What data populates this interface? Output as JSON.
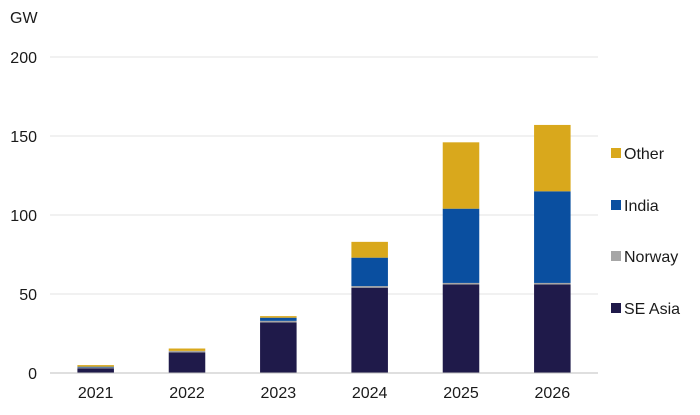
{
  "chart_data": {
    "type": "bar",
    "stacked": true,
    "unit_label": "GW",
    "categories": [
      "2021",
      "2022",
      "2023",
      "2024",
      "2025",
      "2026"
    ],
    "series": [
      {
        "name": "SE Asia",
        "color": "#1f1a4a",
        "values": [
          3,
          13,
          32,
          54,
          56,
          56
        ]
      },
      {
        "name": "Norway",
        "color": "#a6a6a6",
        "values": [
          0.5,
          1,
          1,
          1,
          1,
          1
        ]
      },
      {
        "name": "India",
        "color": "#0a4fa0",
        "values": [
          0.5,
          0,
          2,
          18,
          47,
          58
        ]
      },
      {
        "name": "Other",
        "color": "#d9a81c",
        "values": [
          1,
          1.5,
          1,
          10,
          42,
          42
        ]
      }
    ],
    "ylim": [
      0,
      200
    ],
    "yticks": [
      0,
      50,
      100,
      150,
      200
    ],
    "grid": true,
    "legend_position": "right",
    "legend_order": [
      "Other",
      "India",
      "Norway",
      "SE Asia"
    ]
  }
}
